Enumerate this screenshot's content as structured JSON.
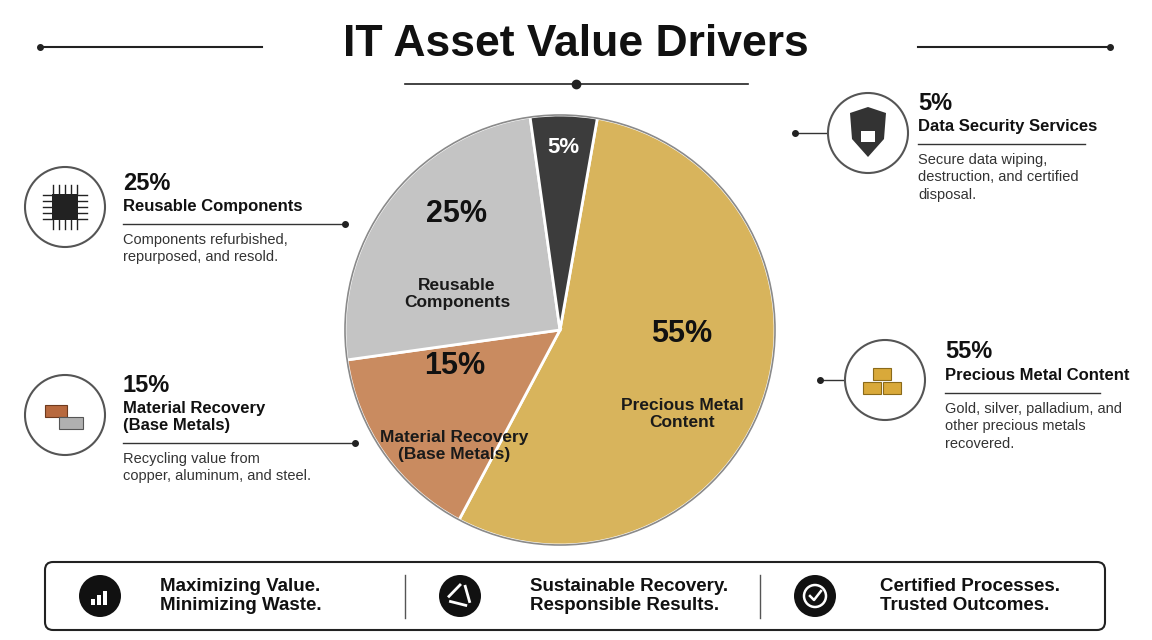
{
  "chart_data": {
    "type": "pie",
    "title": "IT Asset Value Drivers",
    "categories": [
      "Precious Metal Content",
      "Material Recovery (Base Metals)",
      "Reusable Components",
      "Data Security Services"
    ],
    "values": [
      55,
      15,
      25,
      5
    ],
    "value_labels": [
      "55%",
      "15%",
      "25%",
      "5%"
    ],
    "colors": [
      "#d8b45c",
      "#c98b60",
      "#c4c4c4",
      "#3c3c3c"
    ],
    "descriptions": [
      [
        "Gold, silver, palladium, and",
        "other precious metals",
        "recovered."
      ],
      [
        "Recycling value from",
        "copper, aluminum, and steel."
      ],
      [
        "Components refurbished,",
        "repurposed, and resold."
      ],
      [
        "Secure data wiping,",
        "destruction, and certified",
        "disposal."
      ]
    ]
  },
  "footer": [
    [
      "Maximizing Value.",
      "Minimizing Waste."
    ],
    [
      "Sustainable Recovery.",
      "Responsible Results."
    ],
    [
      "Certified Processes.",
      "Trusted Outcomes."
    ]
  ]
}
